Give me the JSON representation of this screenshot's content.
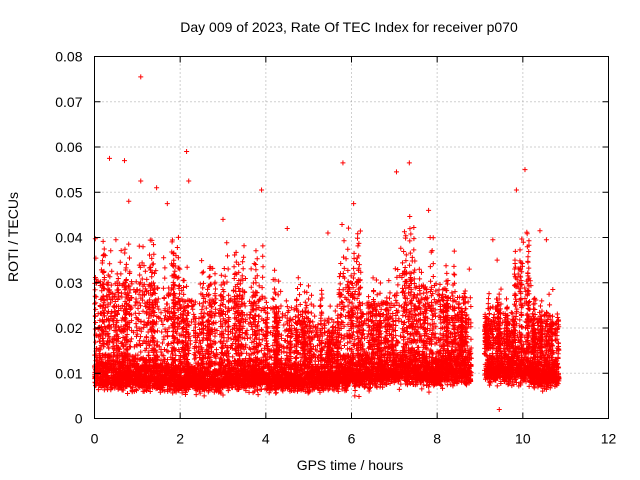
{
  "chart_data": {
    "type": "scatter",
    "title": "Day 009 of 2023, Rate Of TEC Index for receiver p070",
    "xlabel": "GPS time / hours",
    "ylabel": "ROTI / TECUs",
    "xlim": [
      0,
      12
    ],
    "ylim": [
      0,
      0.08
    ],
    "grid": true,
    "marker": "+",
    "color": "#ff0000",
    "x_ticks": [
      "0",
      "2",
      "4",
      "6",
      "8",
      "10",
      "12"
    ],
    "y_ticks": [
      "0",
      "0.01",
      "0.02",
      "0.03",
      "0.04",
      "0.05",
      "0.06",
      "0.07",
      "0.08"
    ],
    "x_tick_values": [
      0,
      2,
      4,
      6,
      8,
      10,
      12
    ],
    "y_tick_values": [
      0,
      0.01,
      0.02,
      0.03,
      0.04,
      0.05,
      0.06,
      0.07,
      0.08
    ],
    "data_x_range": [
      0,
      10.85
    ],
    "data_gap_hours": [
      8.8,
      9.1
    ],
    "notable_points": [
      {
        "x": 1.08,
        "y": 0.0755
      },
      {
        "x": 2.15,
        "y": 0.059
      },
      {
        "x": 0.35,
        "y": 0.0575
      },
      {
        "x": 0.7,
        "y": 0.057
      },
      {
        "x": 5.8,
        "y": 0.0565
      },
      {
        "x": 7.35,
        "y": 0.0565
      },
      {
        "x": 10.05,
        "y": 0.055
      },
      {
        "x": 7.05,
        "y": 0.0545
      },
      {
        "x": 1.08,
        "y": 0.0525
      },
      {
        "x": 2.2,
        "y": 0.0525
      },
      {
        "x": 1.45,
        "y": 0.051
      },
      {
        "x": 3.9,
        "y": 0.0505
      },
      {
        "x": 9.85,
        "y": 0.0505
      },
      {
        "x": 0.8,
        "y": 0.048
      },
      {
        "x": 1.7,
        "y": 0.0475
      },
      {
        "x": 6.05,
        "y": 0.0475
      },
      {
        "x": 7.8,
        "y": 0.046
      },
      {
        "x": 3.0,
        "y": 0.044
      },
      {
        "x": 4.5,
        "y": 0.042
      },
      {
        "x": 10.4,
        "y": 0.0415
      },
      {
        "x": 10.55,
        "y": 0.0395
      },
      {
        "x": 0.5,
        "y": 0.0395
      },
      {
        "x": 5.45,
        "y": 0.041
      },
      {
        "x": 9.3,
        "y": 0.0395
      },
      {
        "x": 8.4,
        "y": 0.037
      },
      {
        "x": 0.25,
        "y": 0.036
      },
      {
        "x": 8.75,
        "y": 0.033
      },
      {
        "x": 9.4,
        "y": 0.035
      },
      {
        "x": 10.7,
        "y": 0.0285
      },
      {
        "x": 10.8,
        "y": 0.0215
      },
      {
        "x": 9.45,
        "y": 0.002
      },
      {
        "x": 0.1,
        "y": 0.018
      }
    ],
    "envelope": [
      {
        "from": 0.0,
        "to": 1.0,
        "base": 0.0095,
        "spread": 0.009,
        "spike": 0.045
      },
      {
        "from": 1.0,
        "to": 2.0,
        "base": 0.009,
        "spread": 0.008,
        "spike": 0.045
      },
      {
        "from": 2.0,
        "to": 3.0,
        "base": 0.0085,
        "spread": 0.0075,
        "spike": 0.04
      },
      {
        "from": 3.0,
        "to": 4.0,
        "base": 0.009,
        "spread": 0.0075,
        "spike": 0.042
      },
      {
        "from": 4.0,
        "to": 5.0,
        "base": 0.0085,
        "spread": 0.007,
        "spike": 0.035
      },
      {
        "from": 5.0,
        "to": 5.7,
        "base": 0.0085,
        "spread": 0.006,
        "spike": 0.03
      },
      {
        "from": 5.7,
        "to": 6.2,
        "base": 0.0095,
        "spread": 0.009,
        "spike": 0.047
      },
      {
        "from": 6.2,
        "to": 7.0,
        "base": 0.01,
        "spread": 0.0085,
        "spike": 0.034
      },
      {
        "from": 7.0,
        "to": 7.5,
        "base": 0.0105,
        "spread": 0.009,
        "spike": 0.05
      },
      {
        "from": 7.5,
        "to": 8.0,
        "base": 0.01,
        "spread": 0.0085,
        "spike": 0.044
      },
      {
        "from": 8.0,
        "to": 8.8,
        "base": 0.0105,
        "spread": 0.009,
        "spike": 0.036
      },
      {
        "from": 9.1,
        "to": 9.8,
        "base": 0.011,
        "spread": 0.009,
        "spike": 0.03
      },
      {
        "from": 9.8,
        "to": 10.2,
        "base": 0.011,
        "spread": 0.009,
        "spike": 0.05
      },
      {
        "from": 10.2,
        "to": 10.85,
        "base": 0.0095,
        "spread": 0.008,
        "spike": 0.03
      }
    ]
  }
}
